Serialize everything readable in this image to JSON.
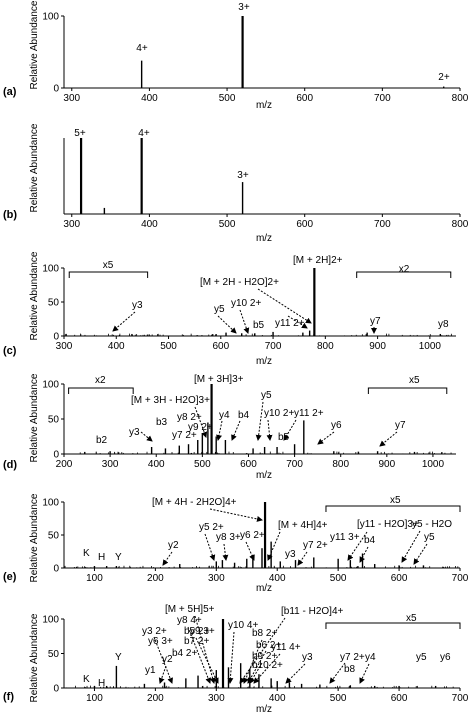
{
  "chart_data": [
    {
      "panel": "(a)",
      "type": "bar",
      "xlabel": "m/z",
      "ylabel": "Relative Abundance",
      "xlim": [
        290,
        800
      ],
      "ylim": [
        0,
        100
      ],
      "xticks": [
        "300",
        "400",
        "500",
        "600",
        "700",
        "800"
      ],
      "yticks": [
        "0",
        "100"
      ],
      "peaks": [
        {
          "x": 390,
          "y": 38,
          "label": "4+"
        },
        {
          "x": 520,
          "y": 100,
          "label": "3+"
        },
        {
          "x": 779,
          "y": 2,
          "label": "2+"
        }
      ]
    },
    {
      "panel": "(b)",
      "type": "bar",
      "xlabel": "m/z",
      "ylabel": "Relative Abundance",
      "xlim": [
        290,
        800
      ],
      "ylim": [
        0,
        100
      ],
      "xticks": [
        "300",
        "400",
        "500",
        "600",
        "700",
        "800"
      ],
      "yticks": [],
      "peaks": [
        {
          "x": 312,
          "y": 100,
          "label": "5+"
        },
        {
          "x": 342,
          "y": 8,
          "label": ""
        },
        {
          "x": 390,
          "y": 100,
          "label": "4+"
        },
        {
          "x": 520,
          "y": 42,
          "label": "3+"
        }
      ]
    },
    {
      "panel": "(c)",
      "type": "bar",
      "xlabel": "m/z",
      "ylabel": "Relative Abundance",
      "xlim": [
        300,
        1050
      ],
      "ylim": [
        0,
        100
      ],
      "xticks": [
        "300",
        "400",
        "500",
        "600",
        "700",
        "800",
        "900",
        "1000"
      ],
      "yticks": [
        "0",
        "50",
        "100"
      ],
      "zoom": [
        {
          "label": "x5",
          "from": 310,
          "to": 460
        },
        {
          "label": "x2",
          "from": 860,
          "to": 1040
        }
      ],
      "annotations": [
        "[M + 2H]2+",
        "[M + 2H - H2O]2+",
        "y3",
        "y5",
        "y10 2+",
        "b5",
        "y11 2+",
        "y7",
        "y8"
      ],
      "peaks": [
        {
          "x": 430,
          "y": 3
        },
        {
          "x": 610,
          "y": 5
        },
        {
          "x": 640,
          "y": 4
        },
        {
          "x": 665,
          "y": 4
        },
        {
          "x": 700,
          "y": 6
        },
        {
          "x": 757,
          "y": 5
        },
        {
          "x": 770,
          "y": 8
        },
        {
          "x": 779,
          "y": 100
        },
        {
          "x": 880,
          "y": 5
        },
        {
          "x": 1020,
          "y": 3
        }
      ]
    },
    {
      "panel": "(d)",
      "type": "bar",
      "xlabel": "m/z",
      "ylabel": "Relative Abundance",
      "xlim": [
        200,
        1050
      ],
      "ylim": [
        0,
        100
      ],
      "xticks": [
        "200",
        "300",
        "400",
        "500",
        "600",
        "700",
        "800",
        "900",
        "1000"
      ],
      "yticks": [
        "0",
        "50",
        "100"
      ],
      "zoom": [
        {
          "label": "x2",
          "from": 210,
          "to": 350
        },
        {
          "label": "x5",
          "from": 860,
          "to": 1030
        }
      ],
      "annotations": [
        "[M + 3H]3+",
        "[M + 3H - H2O]3+",
        "x2",
        "x5",
        "b2",
        "y3",
        "b3",
        "b4",
        "y4",
        "y5",
        "y6",
        "y7",
        "y7 2+",
        "y8 2+",
        "y9 2+",
        "y10 2+",
        "y11 2+",
        "b5"
      ],
      "peaks": [
        {
          "x": 245,
          "y": 3
        },
        {
          "x": 300,
          "y": 4
        },
        {
          "x": 390,
          "y": 10
        },
        {
          "x": 420,
          "y": 8
        },
        {
          "x": 450,
          "y": 12
        },
        {
          "x": 470,
          "y": 14
        },
        {
          "x": 490,
          "y": 20
        },
        {
          "x": 500,
          "y": 30
        },
        {
          "x": 512,
          "y": 45
        },
        {
          "x": 520,
          "y": 100
        },
        {
          "x": 530,
          "y": 25
        },
        {
          "x": 550,
          "y": 20
        },
        {
          "x": 610,
          "y": 8
        },
        {
          "x": 635,
          "y": 10
        },
        {
          "x": 662,
          "y": 10
        },
        {
          "x": 700,
          "y": 14
        },
        {
          "x": 720,
          "y": 48
        },
        {
          "x": 785,
          "y": 4
        },
        {
          "x": 880,
          "y": 4
        },
        {
          "x": 960,
          "y": 3
        }
      ]
    },
    {
      "panel": "(e)",
      "type": "bar",
      "xlabel": "m/z",
      "ylabel": "Relative Abundance",
      "xlim": [
        50,
        700
      ],
      "ylim": [
        0,
        100
      ],
      "xticks": [
        "100",
        "200",
        "300",
        "400",
        "500",
        "600",
        "700"
      ],
      "yticks": [
        "0",
        "50",
        "100"
      ],
      "zoom": [
        {
          "label": "x5",
          "from": 480,
          "to": 700
        }
      ],
      "annotations": [
        "[M + 4H - 2H2O]4+",
        "[M + 4H]4+",
        "[y11 - H2O]3+",
        "y5 - H2O",
        "K",
        "H",
        "Y",
        "y2",
        "y5 2+",
        "y8 3+",
        "y6 2+",
        "y7 2+",
        "y11 3+",
        "b4",
        "y3",
        "y5"
      ],
      "peaks": [
        {
          "x": 100,
          "y": 3
        },
        {
          "x": 120,
          "y": 3
        },
        {
          "x": 136,
          "y": 3
        },
        {
          "x": 240,
          "y": 6
        },
        {
          "x": 300,
          "y": 10
        },
        {
          "x": 310,
          "y": 12
        },
        {
          "x": 330,
          "y": 8
        },
        {
          "x": 350,
          "y": 14
        },
        {
          "x": 360,
          "y": 20
        },
        {
          "x": 375,
          "y": 30
        },
        {
          "x": 380,
          "y": 100
        },
        {
          "x": 390,
          "y": 40
        },
        {
          "x": 405,
          "y": 10
        },
        {
          "x": 430,
          "y": 12
        },
        {
          "x": 460,
          "y": 16
        },
        {
          "x": 500,
          "y": 14
        },
        {
          "x": 520,
          "y": 12
        },
        {
          "x": 540,
          "y": 22
        },
        {
          "x": 560,
          "y": 6
        },
        {
          "x": 600,
          "y": 4
        },
        {
          "x": 640,
          "y": 4
        }
      ]
    },
    {
      "panel": "(f)",
      "type": "bar",
      "xlabel": "m/z",
      "ylabel": "Relative Abundance",
      "xlim": [
        50,
        700
      ],
      "ylim": [
        0,
        100
      ],
      "xticks": [
        "100",
        "200",
        "300",
        "400",
        "500",
        "600",
        "700"
      ],
      "yticks": [
        "0",
        "50",
        "100"
      ],
      "zoom": [
        {
          "label": "x5",
          "from": 480,
          "to": 700
        }
      ],
      "annotations": [
        "[M + 5H]5+",
        "[b11 - H2O]4+",
        "x5",
        "K",
        "H",
        "Y",
        "y1",
        "y2",
        "y3 2+",
        "y6 3+",
        "b4 2+",
        "y8 4+",
        "b5 2+",
        "b6 2+",
        "b7 2+",
        "b8 2+",
        "b9 2+",
        "b10 2+",
        "y9 3+",
        "y10 4+",
        "y11 4+",
        "y7 2+",
        "b8",
        "y3",
        "y4",
        "y5",
        "y6"
      ],
      "peaks": [
        {
          "x": 100,
          "y": 3
        },
        {
          "x": 120,
          "y": 3
        },
        {
          "x": 136,
          "y": 32
        },
        {
          "x": 182,
          "y": 6
        },
        {
          "x": 215,
          "y": 8
        },
        {
          "x": 250,
          "y": 14
        },
        {
          "x": 270,
          "y": 18
        },
        {
          "x": 300,
          "y": 26
        },
        {
          "x": 311,
          "y": 100
        },
        {
          "x": 320,
          "y": 30
        },
        {
          "x": 340,
          "y": 36
        },
        {
          "x": 355,
          "y": 28
        },
        {
          "x": 370,
          "y": 20
        },
        {
          "x": 390,
          "y": 14
        },
        {
          "x": 400,
          "y": 10
        },
        {
          "x": 420,
          "y": 8
        },
        {
          "x": 440,
          "y": 6
        },
        {
          "x": 470,
          "y": 5
        },
        {
          "x": 520,
          "y": 4
        },
        {
          "x": 560,
          "y": 3
        },
        {
          "x": 600,
          "y": 3
        },
        {
          "x": 660,
          "y": 3
        }
      ]
    }
  ]
}
